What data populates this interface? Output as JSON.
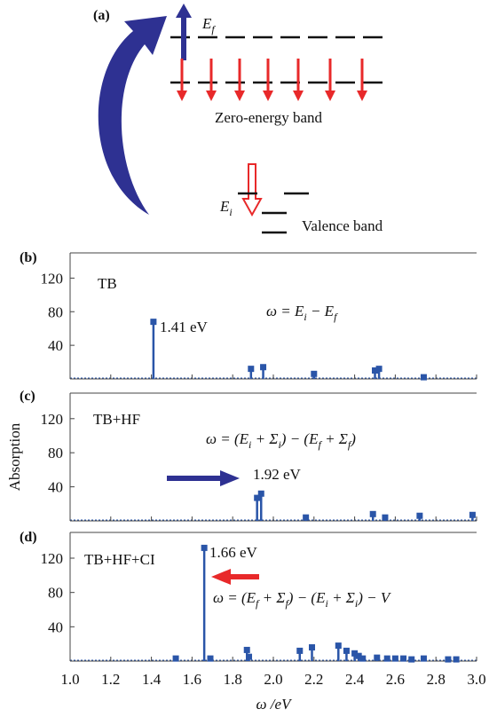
{
  "diagram": {
    "panel_label": "(a)",
    "ef_label": {
      "t": "E",
      "sub": "f"
    },
    "ei_label": {
      "t": "E",
      "sub": "i"
    },
    "zero_band": "Zero-energy band",
    "valence_band": "Valence band"
  },
  "chart_data": [
    {
      "type": "stem",
      "panel_label": "(b)",
      "name": "TB",
      "color": "#2a55a8",
      "xlim": [
        1.0,
        3.0
      ],
      "ylim": [
        0,
        150
      ],
      "yticks": [
        40,
        80,
        120
      ],
      "x": [
        1.41,
        1.89,
        1.95,
        2.2,
        2.5,
        2.52,
        2.74
      ],
      "values": [
        68,
        12,
        14,
        6,
        10,
        12,
        2
      ],
      "annotation": "1.41 eV",
      "formula": [
        {
          "t": "ω = E"
        },
        {
          "sub": "i"
        },
        {
          "t": " − E"
        },
        {
          "sub": "f"
        }
      ]
    },
    {
      "type": "stem",
      "panel_label": "(c)",
      "name": "TB+HF",
      "ylabel": "Absorption",
      "color": "#2a55a8",
      "xlim": [
        1.0,
        3.0
      ],
      "ylim": [
        0,
        150
      ],
      "yticks": [
        40,
        80,
        120
      ],
      "x": [
        1.92,
        1.94,
        2.16,
        2.49,
        2.55,
        2.72,
        2.98
      ],
      "values": [
        27,
        32,
        4,
        8,
        4,
        6,
        7
      ],
      "annotation": "1.92 eV",
      "formula": [
        {
          "t": "ω = (E"
        },
        {
          "sub": "i"
        },
        {
          "t": " + Σ"
        },
        {
          "sub": "i"
        },
        {
          "t": ") − (E"
        },
        {
          "sub": "f"
        },
        {
          "t": " + Σ"
        },
        {
          "sub": "f"
        },
        {
          "t": ")"
        }
      ]
    },
    {
      "type": "stem",
      "panel_label": "(d)",
      "name": "TB+HF+CI",
      "xlabel": "ω /eV",
      "color": "#2a55a8",
      "xlim": [
        1.0,
        3.0
      ],
      "ylim": [
        0,
        150
      ],
      "yticks": [
        40,
        80,
        120
      ],
      "xticks": [
        {
          "value": 1.0,
          "label": "1.0"
        },
        {
          "value": 1.2,
          "label": "1.2"
        },
        {
          "value": 1.4,
          "label": "1.4"
        },
        {
          "value": 1.6,
          "label": "1.6"
        },
        {
          "value": 1.8,
          "label": "1.8"
        },
        {
          "value": 2.0,
          "label": "2.0"
        },
        {
          "value": 2.2,
          "label": "2.2"
        },
        {
          "value": 2.4,
          "label": "2.4"
        },
        {
          "value": 2.6,
          "label": "2.6"
        },
        {
          "value": 2.8,
          "label": "2.8"
        },
        {
          "value": 3.0,
          "label": "3.0"
        }
      ],
      "x": [
        1.52,
        1.66,
        1.69,
        1.87,
        1.88,
        2.13,
        2.19,
        2.32,
        2.36,
        2.4,
        2.42,
        2.44,
        2.51,
        2.56,
        2.6,
        2.64,
        2.68,
        2.74,
        2.86,
        2.9
      ],
      "values": [
        3,
        132,
        3,
        13,
        5,
        12,
        16,
        18,
        12,
        9,
        6,
        3,
        4,
        3,
        3,
        3,
        2,
        3,
        2,
        2
      ],
      "annotation": "1.66 eV",
      "formula": [
        {
          "t": "ω = (E"
        },
        {
          "sub": "f"
        },
        {
          "t": " + Σ"
        },
        {
          "sub": "f"
        },
        {
          "t": ") − (E"
        },
        {
          "sub": "i"
        },
        {
          "t": " + Σ"
        },
        {
          "sub": "i"
        },
        {
          "t": ") − V"
        }
      ]
    }
  ]
}
